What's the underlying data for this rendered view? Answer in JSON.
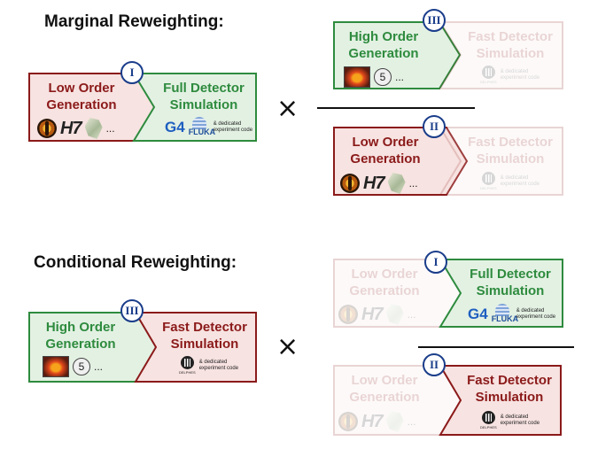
{
  "marginal": {
    "title": "Marginal Reweighting:",
    "times_symbol": "×",
    "left": {
      "badge": "I",
      "gen": {
        "label": "Low Order\nGeneration",
        "icon_text": "H7",
        "more": "..."
      },
      "det": {
        "label": "Full Detector\nSimulation",
        "icon_text": "G4",
        "fluka": "FLUKA",
        "note": "& dedicated\nexperiment code"
      }
    },
    "numerator": {
      "badge": "III",
      "gen": {
        "label": "High Order\nGeneration",
        "five": "5",
        "more": "..."
      },
      "det": {
        "label": "Fast Detector\nSimulation",
        "delphes": "DELPHES",
        "note": "& dedicated\nexperiment code"
      }
    },
    "denominator": {
      "badge": "II",
      "gen": {
        "label": "Low Order\nGeneration",
        "icon_text": "H7",
        "more": "..."
      },
      "det": {
        "label": "Fast Detector\nSimulation",
        "delphes": "DELPHES",
        "note": "& dedicated\nexperiment code"
      }
    }
  },
  "conditional": {
    "title": "Conditional Reweighting:",
    "times_symbol": "×",
    "left": {
      "badge": "III",
      "gen": {
        "label": "High Order\nGeneration",
        "five": "5",
        "more": "..."
      },
      "det": {
        "label": "Fast Detector\nSimulation",
        "delphes": "DELPHES",
        "note": "& dedicated\nexperiment code"
      }
    },
    "numerator": {
      "badge": "I",
      "gen": {
        "label": "Low Order\nGeneration",
        "icon_text": "H7",
        "more": "..."
      },
      "det": {
        "label": "Full Detector\nSimulation",
        "icon_text": "G4",
        "fluka": "FLUKA",
        "note": "& dedicated\nexperiment code"
      }
    },
    "denominator": {
      "badge": "II",
      "gen": {
        "label": "Low Order\nGeneration",
        "icon_text": "H7",
        "more": "..."
      },
      "det": {
        "label": "Fast Detector\nSimulation",
        "delphes": "DELPHES",
        "note": "& dedicated\nexperiment code"
      }
    }
  },
  "colors": {
    "red_fill": "#f7e3e1",
    "red_stroke": "#8b1a1a",
    "red_text": "#8b1a1a",
    "green_fill": "#e3f1e3",
    "green_stroke": "#2e8b3e",
    "green_text": "#2e8b3e",
    "badge_blue": "#1a3d8a"
  }
}
